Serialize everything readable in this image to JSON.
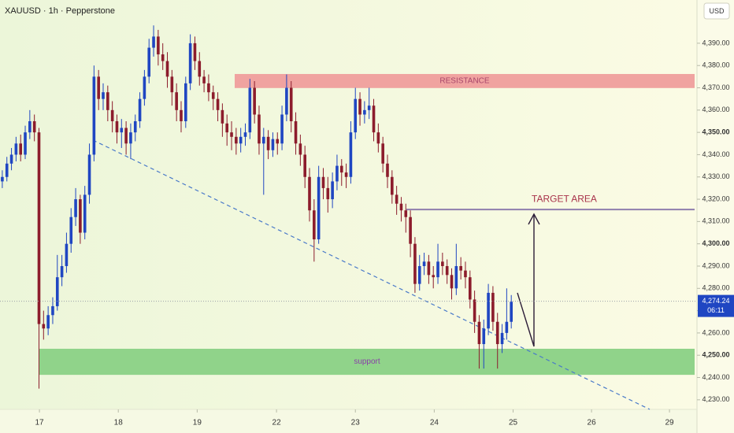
{
  "chart_data": {
    "type": "candlestick",
    "title": "XAUUSD · 1h · Pepperstone",
    "currency": "USD",
    "up_color": "#1f46c2",
    "down_color": "#8c1c2c",
    "ylim": [
      4225.7,
      4409.4
    ],
    "yticks": [
      {
        "value": 4230,
        "label": "4,230.00"
      },
      {
        "value": 4240,
        "label": "4,240.00"
      },
      {
        "value": 4250,
        "label": "4,250.00"
      },
      {
        "value": 4260,
        "label": "4,260.00"
      },
      {
        "value": 4270,
        "label": "4,270.00"
      },
      {
        "value": 4280,
        "label": "4,280.00"
      },
      {
        "value": 4290,
        "label": "4,290.00"
      },
      {
        "value": 4300,
        "label": "4,300.00"
      },
      {
        "value": 4310,
        "label": "4,310.00"
      },
      {
        "value": 4320,
        "label": "4,320.00"
      },
      {
        "value": 4330,
        "label": "4,330.00"
      },
      {
        "value": 4340,
        "label": "4,340.00"
      },
      {
        "value": 4350,
        "label": "4,350.00"
      },
      {
        "value": 4360,
        "label": "4,360.00"
      },
      {
        "value": 4370,
        "label": "4,370.00"
      },
      {
        "value": 4380,
        "label": "4,380.00"
      },
      {
        "value": 4390,
        "label": "4,390.00"
      }
    ],
    "xlim": [
      0,
      152
    ],
    "xticks": [
      {
        "value": 8.6,
        "label": "17"
      },
      {
        "value": 25.8,
        "label": "18"
      },
      {
        "value": 43.0,
        "label": "19"
      },
      {
        "value": 60.3,
        "label": "22"
      },
      {
        "value": 77.5,
        "label": "23"
      },
      {
        "value": 94.7,
        "label": "24"
      },
      {
        "value": 111.9,
        "label": "25"
      },
      {
        "value": 129.0,
        "label": "26"
      },
      {
        "value": 146.0,
        "label": "29"
      }
    ],
    "candles": [
      [
        4328,
        4333,
        4325,
        4330
      ],
      [
        4330,
        4339,
        4328,
        4336
      ],
      [
        4336,
        4343,
        4333,
        4340
      ],
      [
        4340,
        4348,
        4337,
        4345
      ],
      [
        4345,
        4349,
        4337,
        4340
      ],
      [
        4340,
        4353,
        4338,
        4350
      ],
      [
        4350,
        4360,
        4347,
        4355
      ],
      [
        4355,
        4358,
        4346,
        4350
      ],
      [
        4350,
        4352,
        4235,
        4264
      ],
      [
        4264,
        4270,
        4257,
        4262
      ],
      [
        4262,
        4272,
        4259,
        4268
      ],
      [
        4268,
        4276,
        4264,
        4272
      ],
      [
        4272,
        4295,
        4270,
        4285
      ],
      [
        4285,
        4295,
        4281,
        4290
      ],
      [
        4290,
        4305,
        4287,
        4300
      ],
      [
        4300,
        4316,
        4296,
        4312
      ],
      [
        4312,
        4325,
        4308,
        4320
      ],
      [
        4320,
        4322,
        4300,
        4305
      ],
      [
        4305,
        4326,
        4302,
        4322
      ],
      [
        4322,
        4345,
        4318,
        4340
      ],
      [
        4340,
        4380,
        4337,
        4375
      ],
      [
        4375,
        4378,
        4360,
        4365
      ],
      [
        4365,
        4372,
        4360,
        4368
      ],
      [
        4368,
        4371,
        4355,
        4360
      ],
      [
        4360,
        4364,
        4350,
        4355
      ],
      [
        4355,
        4358,
        4345,
        4350
      ],
      [
        4350,
        4356,
        4343,
        4352
      ],
      [
        4352,
        4355,
        4340,
        4345
      ],
      [
        4345,
        4354,
        4338,
        4350
      ],
      [
        4350,
        4358,
        4346,
        4355
      ],
      [
        4355,
        4368,
        4352,
        4365
      ],
      [
        4365,
        4378,
        4362,
        4375
      ],
      [
        4375,
        4392,
        4372,
        4388
      ],
      [
        4388,
        4398,
        4384,
        4393
      ],
      [
        4393,
        4396,
        4380,
        4385
      ],
      [
        4385,
        4390,
        4378,
        4382
      ],
      [
        4382,
        4386,
        4370,
        4375
      ],
      [
        4375,
        4378,
        4362,
        4368
      ],
      [
        4368,
        4372,
        4355,
        4360
      ],
      [
        4360,
        4364,
        4350,
        4355
      ],
      [
        4355,
        4375,
        4352,
        4372
      ],
      [
        4372,
        4394,
        4369,
        4390
      ],
      [
        4390,
        4393,
        4378,
        4382
      ],
      [
        4382,
        4386,
        4371,
        4375
      ],
      [
        4375,
        4378,
        4368,
        4372
      ],
      [
        4372,
        4376,
        4364,
        4368
      ],
      [
        4368,
        4371,
        4360,
        4365
      ],
      [
        4365,
        4368,
        4355,
        4360
      ],
      [
        4360,
        4363,
        4348,
        4354
      ],
      [
        4354,
        4358,
        4344,
        4350
      ],
      [
        4350,
        4355,
        4342,
        4348
      ],
      [
        4348,
        4352,
        4340,
        4345
      ],
      [
        4345,
        4352,
        4341,
        4348
      ],
      [
        4348,
        4354,
        4344,
        4350
      ],
      [
        4350,
        4374,
        4347,
        4370
      ],
      [
        4370,
        4373,
        4354,
        4358
      ],
      [
        4358,
        4362,
        4340,
        4345
      ],
      [
        4345,
        4352,
        4322,
        4348
      ],
      [
        4348,
        4351,
        4338,
        4342
      ],
      [
        4342,
        4350,
        4339,
        4347
      ],
      [
        4347,
        4350,
        4340,
        4345
      ],
      [
        4345,
        4362,
        4342,
        4358
      ],
      [
        4358,
        4376,
        4355,
        4370
      ],
      [
        4370,
        4373,
        4350,
        4355
      ],
      [
        4355,
        4359,
        4340,
        4345
      ],
      [
        4345,
        4349,
        4335,
        4340
      ],
      [
        4340,
        4344,
        4325,
        4330
      ],
      [
        4330,
        4334,
        4310,
        4315
      ],
      [
        4315,
        4320,
        4292,
        4302
      ],
      [
        4302,
        4335,
        4300,
        4330
      ],
      [
        4330,
        4334,
        4320,
        4325
      ],
      [
        4325,
        4330,
        4314,
        4320
      ],
      [
        4320,
        4332,
        4316,
        4328
      ],
      [
        4328,
        4340,
        4324,
        4335
      ],
      [
        4335,
        4338,
        4326,
        4332
      ],
      [
        4332,
        4336,
        4325,
        4330
      ],
      [
        4330,
        4355,
        4327,
        4350
      ],
      [
        4350,
        4370,
        4347,
        4365
      ],
      [
        4365,
        4368,
        4353,
        4358
      ],
      [
        4358,
        4364,
        4354,
        4360
      ],
      [
        4360,
        4370,
        4356,
        4362
      ],
      [
        4362,
        4365,
        4346,
        4350
      ],
      [
        4350,
        4354,
        4341,
        4345
      ],
      [
        4345,
        4348,
        4332,
        4336
      ],
      [
        4336,
        4340,
        4325,
        4330
      ],
      [
        4330,
        4333,
        4318,
        4322
      ],
      [
        4322,
        4326,
        4313,
        4318
      ],
      [
        4318,
        4321,
        4310,
        4315
      ],
      [
        4315,
        4318,
        4305,
        4312
      ],
      [
        4312,
        4315,
        4294,
        4300
      ],
      [
        4300,
        4303,
        4278,
        4282
      ],
      [
        4282,
        4295,
        4279,
        4290
      ],
      [
        4290,
        4296,
        4286,
        4292
      ],
      [
        4292,
        4295,
        4282,
        4286
      ],
      [
        4286,
        4290,
        4280,
        4285
      ],
      [
        4285,
        4300,
        4282,
        4292
      ],
      [
        4292,
        4296,
        4286,
        4290
      ],
      [
        4290,
        4293,
        4282,
        4286
      ],
      [
        4286,
        4289,
        4275,
        4280
      ],
      [
        4280,
        4300,
        4277,
        4290
      ],
      [
        4290,
        4294,
        4284,
        4288
      ],
      [
        4288,
        4292,
        4280,
        4285
      ],
      [
        4285,
        4288,
        4271,
        4275
      ],
      [
        4275,
        4279,
        4260,
        4265
      ],
      [
        4265,
        4268,
        4244,
        4255
      ],
      [
        4255,
        4266,
        4244,
        4262
      ],
      [
        4262,
        4282,
        4259,
        4278
      ],
      [
        4278,
        4281,
        4261,
        4265
      ],
      [
        4265,
        4269,
        4244,
        4255
      ],
      [
        4255,
        4264,
        4251,
        4260
      ],
      [
        4260,
        4280,
        4257,
        4265
      ],
      [
        4265,
        4277,
        4262,
        4274
      ]
    ],
    "last_price": {
      "value": 4274.24,
      "label": "4,274.24",
      "countdown": "06:11",
      "color": "#1f46c2"
    },
    "zones": [
      {
        "label": "RESISTANCE",
        "range": [
          4369.9,
          4376.2
        ],
        "color": "#f0a3a0",
        "text_color": "#a8466a"
      },
      {
        "label": "support",
        "range": [
          4241.2,
          4252.9
        ],
        "color": "#90d38a",
        "text_color": "#8a3fa8"
      }
    ],
    "target": {
      "label": "TARGET AREA",
      "value": 4315.4,
      "color": "#8f7fae",
      "text_color": "#a8324a"
    }
  }
}
